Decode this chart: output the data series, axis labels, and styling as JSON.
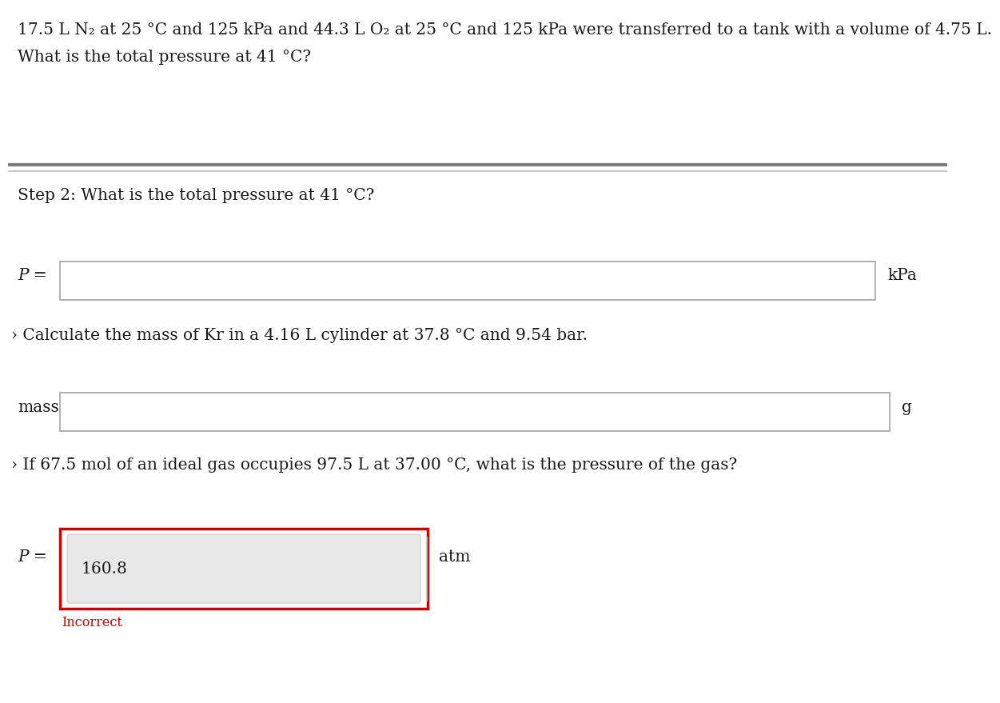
{
  "bg_color": "#ffffff",
  "text_color": "#1a1a1a",
  "line1": "17.5 L N₂ at 25 °C and 125 kPa and 44.3 L O₂ at 25 °C and 125 kPa were transferred to a tank with a volume of 4.75 L.",
  "line2": "What is the total pressure at 41 °C?",
  "step2_label": "Step 2: What is the total pressure at 41 °C?",
  "p_label_1": "P =",
  "unit1": "kPa",
  "kr_line": "› Calculate the mass of Kr in a 4.16 L cylinder at 37.8 °C and 9.54 bar.",
  "mass_label": "mass:",
  "unit2": "g",
  "ideal_line": "› If 67.5 mol of an ideal gas occupies 97.5 L at 37.00 °C, what is the pressure of the gas?",
  "p_label_2": "P =",
  "p_box2_value": "160.8",
  "unit3": "atm",
  "incorrect_label": "Incorrect",
  "incorrect_color": "#cc0000",
  "outer_box_color": "#cc0000",
  "inner_box_fill": "#e8e8e8",
  "box_border_color": "#aaaaaa",
  "sep_color_thick": "#7a7a7a",
  "sep_color_thin": "#bbbbbb",
  "font_size_main": 14.5,
  "font_size_incorrect": 11.5
}
